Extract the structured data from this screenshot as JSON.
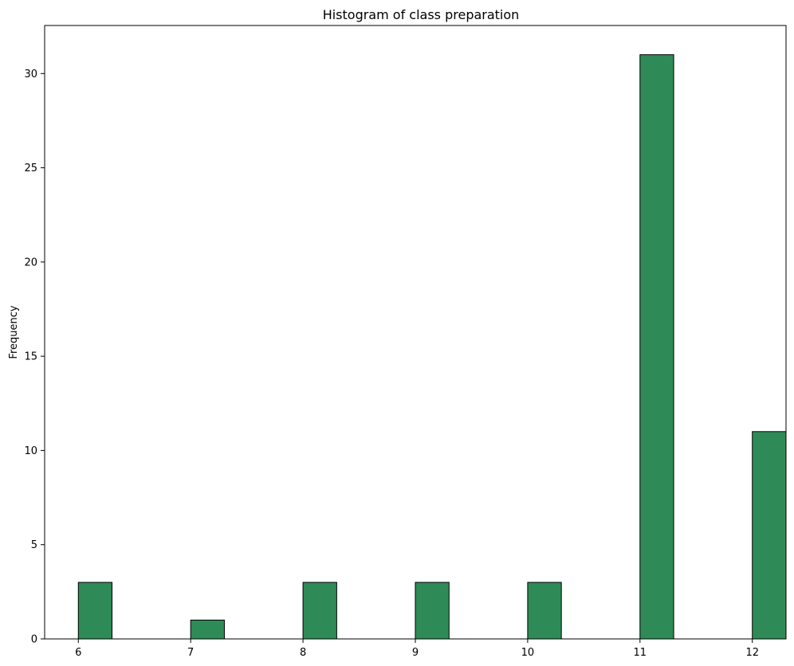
{
  "chart_data": {
    "type": "bar",
    "title": "Histogram of class preparation",
    "xlabel": "",
    "ylabel": "Frequency",
    "bin_width": 0.3,
    "bins": [
      {
        "start": 6.0,
        "value": 3
      },
      {
        "start": 7.0,
        "value": 1
      },
      {
        "start": 8.0,
        "value": 3
      },
      {
        "start": 9.0,
        "value": 3
      },
      {
        "start": 10.0,
        "value": 3
      },
      {
        "start": 11.0,
        "value": 31
      },
      {
        "start": 12.0,
        "value": 11
      }
    ],
    "xticks": [
      6,
      7,
      8,
      9,
      10,
      11,
      12
    ],
    "yticks": [
      0,
      5,
      10,
      15,
      20,
      25,
      30
    ],
    "xlim": [
      5.7,
      12.3
    ],
    "ylim": [
      0,
      32.55
    ],
    "grid": false,
    "bar_color": "#2e8b57",
    "edge_color": "#000000"
  }
}
